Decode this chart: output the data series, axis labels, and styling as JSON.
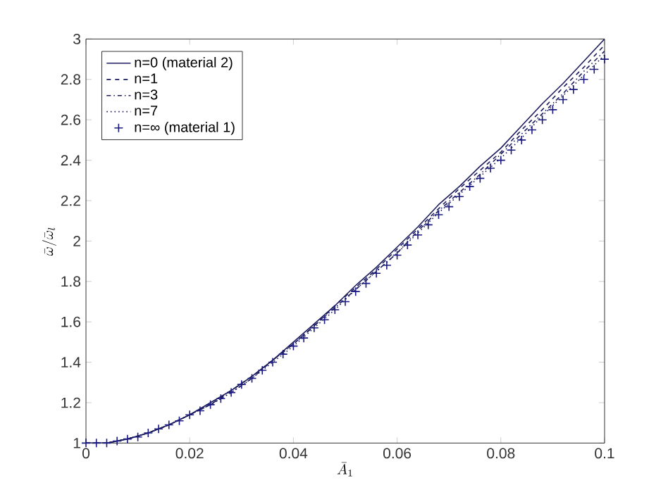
{
  "chart_data": {
    "type": "line",
    "xlabel": "\\bar{A}_1",
    "ylabel": "\\bar{\\omega}/\\bar{\\omega}_l",
    "xlim": [
      0,
      0.1
    ],
    "ylim": [
      1,
      3
    ],
    "xticks": [
      0,
      0.02,
      0.04,
      0.06,
      0.08,
      0.1
    ],
    "yticks": [
      1,
      1.2,
      1.4,
      1.6,
      1.8,
      2,
      2.2,
      2.4,
      2.6,
      2.8,
      3
    ],
    "legend": "top left",
    "grid": false,
    "series": [
      {
        "name": "n=0 (material 2)",
        "color": "#1c1c5e",
        "line_style": "solid",
        "marker": "none",
        "x": [
          0,
          0.004,
          0.008,
          0.012,
          0.016,
          0.02,
          0.024,
          0.028,
          0.032,
          0.036,
          0.04,
          0.044,
          0.048,
          0.052,
          0.056,
          0.06,
          0.064,
          0.068,
          0.072,
          0.076,
          0.08,
          0.084,
          0.088,
          0.092,
          0.096,
          0.1
        ],
        "values": [
          1.0,
          1.0,
          1.02,
          1.05,
          1.09,
          1.14,
          1.2,
          1.26,
          1.33,
          1.41,
          1.5,
          1.59,
          1.68,
          1.78,
          1.87,
          1.97,
          2.07,
          2.18,
          2.27,
          2.37,
          2.46,
          2.57,
          2.68,
          2.78,
          2.89,
          3.0
        ]
      },
      {
        "name": "n=1",
        "color": "#1c1c5e",
        "line_style": "dashed",
        "marker": "none",
        "x": [
          0,
          0.004,
          0.008,
          0.012,
          0.016,
          0.02,
          0.024,
          0.028,
          0.032,
          0.036,
          0.04,
          0.044,
          0.048,
          0.052,
          0.056,
          0.06,
          0.064,
          0.068,
          0.072,
          0.076,
          0.08,
          0.084,
          0.088,
          0.092,
          0.096,
          0.1
        ],
        "values": [
          1.0,
          1.0,
          1.02,
          1.05,
          1.09,
          1.14,
          1.19,
          1.26,
          1.33,
          1.41,
          1.49,
          1.58,
          1.68,
          1.77,
          1.86,
          1.96,
          2.06,
          2.16,
          2.26,
          2.35,
          2.44,
          2.55,
          2.65,
          2.76,
          2.86,
          2.97
        ]
      },
      {
        "name": "n=3",
        "color": "#1c1c5e",
        "line_style": "dashdot",
        "marker": "none",
        "x": [
          0,
          0.004,
          0.008,
          0.012,
          0.016,
          0.02,
          0.024,
          0.028,
          0.032,
          0.036,
          0.04,
          0.044,
          0.048,
          0.052,
          0.056,
          0.06,
          0.064,
          0.068,
          0.072,
          0.076,
          0.08,
          0.084,
          0.088,
          0.092,
          0.096,
          0.1
        ],
        "values": [
          1.0,
          1.0,
          1.02,
          1.05,
          1.09,
          1.14,
          1.19,
          1.25,
          1.32,
          1.41,
          1.49,
          1.58,
          1.67,
          1.76,
          1.85,
          1.94,
          2.05,
          2.15,
          2.24,
          2.33,
          2.43,
          2.53,
          2.63,
          2.73,
          2.84,
          2.94
        ]
      },
      {
        "name": "n=7",
        "color": "#1c1c5e",
        "line_style": "dotted",
        "marker": "none",
        "x": [
          0,
          0.004,
          0.008,
          0.012,
          0.016,
          0.02,
          0.024,
          0.028,
          0.032,
          0.036,
          0.04,
          0.044,
          0.048,
          0.052,
          0.056,
          0.06,
          0.064,
          0.068,
          0.072,
          0.076,
          0.08,
          0.084,
          0.088,
          0.092,
          0.096,
          0.1
        ],
        "values": [
          1.0,
          1.0,
          1.02,
          1.05,
          1.09,
          1.14,
          1.19,
          1.25,
          1.32,
          1.4,
          1.48,
          1.57,
          1.66,
          1.76,
          1.85,
          1.94,
          2.04,
          2.14,
          2.23,
          2.32,
          2.41,
          2.51,
          2.62,
          2.72,
          2.82,
          2.92
        ]
      },
      {
        "name": "n=∞ (material 1)",
        "type": "scatter",
        "color": "#1a1a80",
        "marker": "cross",
        "x": [
          0,
          0.002,
          0.004,
          0.006,
          0.008,
          0.01,
          0.012,
          0.014,
          0.016,
          0.018,
          0.02,
          0.022,
          0.024,
          0.026,
          0.028,
          0.03,
          0.032,
          0.034,
          0.036,
          0.038,
          0.04,
          0.042,
          0.044,
          0.046,
          0.048,
          0.05,
          0.052,
          0.054,
          0.056,
          0.058,
          0.06,
          0.062,
          0.064,
          0.066,
          0.068,
          0.07,
          0.072,
          0.074,
          0.076,
          0.078,
          0.08,
          0.082,
          0.084,
          0.086,
          0.088,
          0.09,
          0.092,
          0.094,
          0.096,
          0.098,
          0.1
        ],
        "values": [
          1.0,
          1.0,
          1.0,
          1.01,
          1.02,
          1.03,
          1.05,
          1.07,
          1.09,
          1.11,
          1.14,
          1.16,
          1.19,
          1.22,
          1.25,
          1.29,
          1.32,
          1.36,
          1.4,
          1.44,
          1.48,
          1.52,
          1.57,
          1.61,
          1.66,
          1.7,
          1.75,
          1.79,
          1.84,
          1.88,
          1.93,
          1.98,
          2.03,
          2.08,
          2.13,
          2.17,
          2.22,
          2.27,
          2.31,
          2.36,
          2.4,
          2.45,
          2.5,
          2.55,
          2.6,
          2.65,
          2.7,
          2.75,
          2.8,
          2.85,
          2.9
        ]
      }
    ]
  }
}
